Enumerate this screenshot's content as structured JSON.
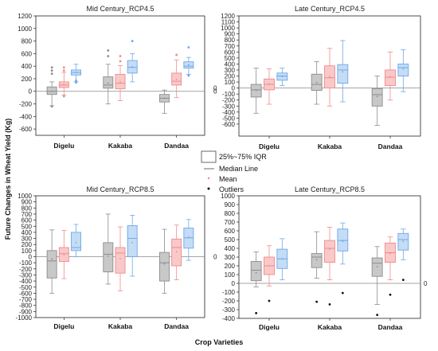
{
  "figure": {
    "ylabel": "Future Changes in Wheat Yield (Kg)",
    "xlabel": "Crop Varieties",
    "zero_marker": "0",
    "series_colors": [
      "#8c8c8c",
      "#f08a8a",
      "#6fa8e8"
    ],
    "series_fills": [
      "#c8c8c8",
      "#f9c9c9",
      "#c4dcf6"
    ]
  },
  "legend": {
    "iqr": "25%~75% IQR",
    "median": "Median Line",
    "mean": "Mean",
    "outliers": "Outliers"
  },
  "chart_data": [
    {
      "type": "box",
      "title": "Mid Century_RCP4.5",
      "ylim": [
        -700,
        1200
      ],
      "yticks": [
        -600,
        -400,
        -200,
        0,
        200,
        400,
        600,
        800,
        1000,
        1200
      ],
      "categories": [
        "Digelu",
        "Kakaba",
        "Dandaa"
      ],
      "series": [
        {
          "boxes": [
            {
              "min": -230,
              "q1": -50,
              "median": 0,
              "q3": 70,
              "max": 150,
              "mean": 0,
              "outliers": [
                -240,
                280,
                330,
                380
              ]
            },
            {
              "min": -200,
              "q1": 50,
              "median": 100,
              "q3": 230,
              "max": 430,
              "mean": 130,
              "outliers": [
                560,
                650
              ]
            },
            {
              "min": -350,
              "q1": -170,
              "median": -110,
              "q3": -50,
              "max": 20,
              "mean": -110,
              "outliers": []
            }
          ]
        },
        {
          "boxes": [
            {
              "min": -60,
              "q1": 60,
              "median": 100,
              "q3": 150,
              "max": 300,
              "mean": 110,
              "outliers": [
                -80,
                330,
                380
              ]
            },
            {
              "min": -150,
              "q1": 40,
              "median": 130,
              "q3": 270,
              "max": 410,
              "mean": 150,
              "outliers": [
                480,
                560
              ]
            },
            {
              "min": -100,
              "q1": 100,
              "median": 160,
              "q3": 290,
              "max": 500,
              "mean": 190,
              "outliers": [
                580
              ]
            }
          ]
        },
        {
          "boxes": [
            {
              "min": 150,
              "q1": 260,
              "median": 300,
              "q3": 340,
              "max": 430,
              "mean": 300,
              "outliers": [
                140,
                170
              ]
            },
            {
              "min": 150,
              "q1": 290,
              "median": 380,
              "q3": 490,
              "max": 600,
              "mean": 390,
              "outliers": [
                800
              ]
            },
            {
              "min": 270,
              "q1": 370,
              "median": 400,
              "q3": 470,
              "max": 540,
              "mean": 420,
              "outliers": [
                700,
                250
              ]
            }
          ]
        }
      ]
    },
    {
      "type": "box",
      "title": "Late Century_RCP4.5",
      "ylim": [
        -800,
        1200
      ],
      "yticks": [
        -600,
        -500,
        -400,
        -300,
        -200,
        -100,
        0,
        100,
        200,
        300,
        400,
        500,
        600,
        700,
        800,
        900,
        1000,
        1100,
        1200
      ],
      "categories": [
        "Digelu",
        "Kakaba",
        "Dandaa"
      ],
      "series": [
        {
          "boxes": [
            {
              "min": -420,
              "q1": -150,
              "median": -30,
              "q3": 60,
              "max": 330,
              "mean": -40,
              "outliers": []
            },
            {
              "min": -270,
              "q1": -40,
              "median": 60,
              "q3": 230,
              "max": 440,
              "mean": 90,
              "outliers": []
            },
            {
              "min": -620,
              "q1": -300,
              "median": -110,
              "q3": -10,
              "max": 200,
              "mean": -140,
              "outliers": []
            }
          ]
        },
        {
          "boxes": [
            {
              "min": -270,
              "q1": -30,
              "median": 60,
              "q3": 150,
              "max": 320,
              "mean": 70,
              "outliers": []
            },
            {
              "min": -300,
              "q1": 0,
              "median": 170,
              "q3": 370,
              "max": 660,
              "mean": 190,
              "outliers": []
            },
            {
              "min": -200,
              "q1": 40,
              "median": 180,
              "q3": 300,
              "max": 600,
              "mean": 190,
              "outliers": []
            }
          ]
        },
        {
          "boxes": [
            {
              "min": 40,
              "q1": 130,
              "median": 200,
              "q3": 250,
              "max": 330,
              "mean": 190,
              "outliers": []
            },
            {
              "min": -230,
              "q1": 80,
              "median": 300,
              "q3": 390,
              "max": 790,
              "mean": 270,
              "outliers": []
            },
            {
              "min": -60,
              "q1": 200,
              "median": 340,
              "q3": 400,
              "max": 640,
              "mean": 320,
              "outliers": []
            }
          ]
        }
      ]
    },
    {
      "type": "box",
      "title": "Mid Century_RCP8.5",
      "ylim": [
        -1000,
        1000
      ],
      "yticks": [
        -1000,
        -900,
        -800,
        -700,
        -600,
        -500,
        -400,
        -300,
        -200,
        -100,
        0,
        100,
        200,
        300,
        400,
        500,
        600,
        700,
        800,
        900,
        1000
      ],
      "categories": [
        "Digelu",
        "Kakaba",
        "Dandaa"
      ],
      "series": [
        {
          "boxes": [
            {
              "min": -600,
              "q1": -350,
              "median": -70,
              "q3": 100,
              "max": 440,
              "mean": -40,
              "outliers": []
            },
            {
              "min": -450,
              "q1": -250,
              "median": 40,
              "q3": 230,
              "max": 700,
              "mean": 10,
              "outliers": []
            },
            {
              "min": -600,
              "q1": -400,
              "median": -100,
              "q3": 70,
              "max": 450,
              "mean": -120,
              "outliers": []
            }
          ]
        },
        {
          "boxes": [
            {
              "min": -360,
              "q1": -80,
              "median": 50,
              "q3": 150,
              "max": 430,
              "mean": 30,
              "outliers": []
            },
            {
              "min": -560,
              "q1": -270,
              "median": 60,
              "q3": 150,
              "max": 490,
              "mean": -30,
              "outliers": []
            },
            {
              "min": -380,
              "q1": -150,
              "median": 150,
              "q3": 290,
              "max": 520,
              "mean": 80,
              "outliers": []
            }
          ]
        },
        {
          "boxes": [
            {
              "min": 0,
              "q1": 100,
              "median": 150,
              "q3": 400,
              "max": 530,
              "mean": 230,
              "outliers": []
            },
            {
              "min": -320,
              "q1": 0,
              "median": 300,
              "q3": 510,
              "max": 680,
              "mean": 230,
              "outliers": []
            },
            {
              "min": -60,
              "q1": 140,
              "median": 310,
              "q3": 470,
              "max": 610,
              "mean": 320,
              "outliers": []
            }
          ]
        }
      ]
    },
    {
      "type": "box",
      "title": "Late Century_RCP8.5",
      "ylim": [
        -400,
        1000
      ],
      "yticks": [
        -400,
        -300,
        -200,
        -100,
        0,
        100,
        200,
        300,
        400,
        500,
        600,
        700,
        800,
        900,
        1000
      ],
      "categories": [
        "Digelu",
        "Kakaba",
        "Dandaa"
      ],
      "series": [
        {
          "boxes": [
            {
              "min": -40,
              "q1": 30,
              "median": 150,
              "q3": 250,
              "max": 360,
              "mean": 120,
              "outliers": [
                -340
              ]
            },
            {
              "min": 60,
              "q1": 180,
              "median": 300,
              "q3": 340,
              "max": 590,
              "mean": 270,
              "outliers": [
                -210
              ]
            },
            {
              "min": -240,
              "q1": 80,
              "median": 230,
              "q3": 290,
              "max": 420,
              "mean": 190,
              "outliers": [
                -360
              ]
            }
          ]
        },
        {
          "boxes": [
            {
              "min": -30,
              "q1": 100,
              "median": 200,
              "q3": 300,
              "max": 430,
              "mean": 200,
              "outliers": [
                -200
              ]
            },
            {
              "min": 40,
              "q1": 240,
              "median": 400,
              "q3": 490,
              "max": 640,
              "mean": 390,
              "outliers": [
                -240
              ]
            },
            {
              "min": 40,
              "q1": 240,
              "median": 350,
              "q3": 460,
              "max": 530,
              "mean": 340,
              "outliers": [
                -130
              ]
            }
          ]
        },
        {
          "boxes": [
            {
              "min": 40,
              "q1": 170,
              "median": 280,
              "q3": 390,
              "max": 510,
              "mean": 280,
              "outliers": []
            },
            {
              "min": 220,
              "q1": 370,
              "median": 490,
              "q3": 620,
              "max": 690,
              "mean": 480,
              "outliers": [
                -110
              ]
            },
            {
              "min": 270,
              "q1": 380,
              "median": 500,
              "q3": 570,
              "max": 620,
              "mean": 480,
              "outliers": [
                40
              ]
            }
          ]
        }
      ]
    }
  ]
}
